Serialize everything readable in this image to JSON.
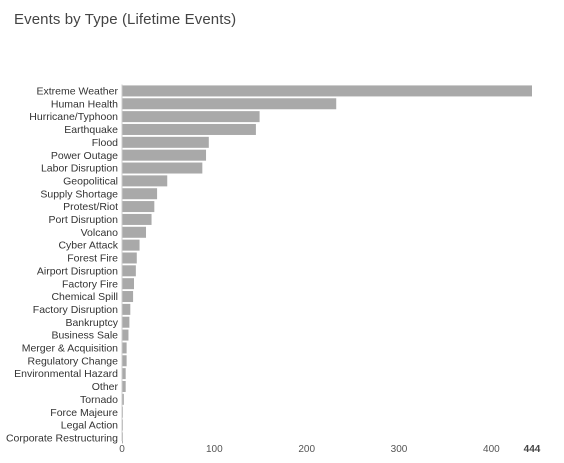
{
  "chart_data": {
    "type": "bar",
    "orientation": "horizontal",
    "title": "Events by Type (Lifetime Events)",
    "categories": [
      "Extreme Weather",
      "Human Health",
      "Hurricane/Typhoon",
      "Earthquake",
      "Flood",
      "Power Outage",
      "Labor Disruption",
      "Geopolitical",
      "Supply Shortage",
      "Protest/Riot",
      "Port Disruption",
      "Volcano",
      "Cyber Attack",
      "Forest Fire",
      "Airport Disruption",
      "Factory Fire",
      "Chemical Spill",
      "Factory Disruption",
      "Bankruptcy",
      "Business Sale",
      "Merger & Acquisition",
      "Regulatory Change",
      "Environmental Hazard",
      "Other",
      "Tornado",
      "Force Majeure",
      "Legal Action",
      "Corporate Restructuring"
    ],
    "values": [
      444,
      232,
      149,
      145,
      94,
      91,
      87,
      49,
      38,
      35,
      32,
      26,
      19,
      16,
      15,
      13,
      12,
      9,
      8,
      7,
      5,
      5,
      4,
      4,
      2,
      1,
      1,
      1
    ],
    "xlim": [
      0,
      444
    ],
    "xticks": [
      "0",
      "100",
      "200",
      "300",
      "400",
      "444"
    ],
    "xtick_values": [
      0,
      100,
      200,
      300,
      400,
      444
    ],
    "grid": false,
    "bar_color": "#a9a9a9"
  }
}
